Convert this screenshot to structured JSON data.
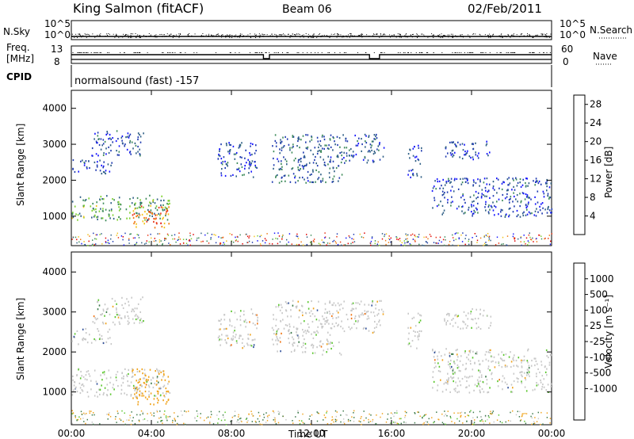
{
  "header": {
    "station": "King Salmon (fitACF)",
    "beam": "Beam 06",
    "date": "02/Feb/2011"
  },
  "left_labels": {
    "nsky": "N.Sky",
    "freq_line1": "Freq.",
    "freq_line2": "[MHz]",
    "cpid": "CPID",
    "nsky_ticks": [
      "10^5",
      "10^0"
    ],
    "freq_ticks": [
      "13",
      "8"
    ]
  },
  "right_labels": {
    "nsearch": "N.Search",
    "nave": "Nave",
    "nsearch_ticks": [
      "10^5",
      "10^0"
    ],
    "nave_ticks": [
      "60",
      "0"
    ]
  },
  "cpid_text": "normalsound (fast) -157",
  "colors": {
    "power_scale": [
      "#1414ff",
      "#1f3ab0",
      "#2f5f86",
      "#3e8a5a",
      "#7dd12e",
      "#f3c31a",
      "#f07a14",
      "#e83414",
      "#e00000"
    ],
    "velocity_scale": [
      "#1b2fe0",
      "#2f4f9a",
      "#3d7a4a",
      "#59c62b",
      "#c8c8c8",
      "#c8c8c8",
      "#f0a41e",
      "#f07414",
      "#e83a12",
      "#e00000"
    ]
  },
  "chart_data": [
    {
      "type": "heatmap",
      "name": "power",
      "xlabel": "Time UT",
      "ylabel": "Slant Range [km]",
      "x_ticks": [
        "00:00",
        "04:00",
        "08:00",
        "12:00",
        "16:00",
        "20:00",
        "00:00"
      ],
      "x_range_hours": [
        0,
        24
      ],
      "y_ticks": [
        "1000",
        "2000",
        "3000",
        "4000"
      ],
      "y_range_km": [
        180,
        4500
      ],
      "colorbar_label": "Power [dB]",
      "colorbar_ticks": [
        "4",
        "8",
        "12",
        "16",
        "20",
        "24",
        "28"
      ],
      "colorbar_range": [
        0,
        30
      ],
      "scatter_regions": [
        {
          "t0": 0.0,
          "t1": 4.9,
          "r0": 900,
          "r1": 1600,
          "value": 12
        },
        {
          "t0": 0.0,
          "t1": 2.0,
          "r0": 2200,
          "r1": 2600,
          "value": 6
        },
        {
          "t0": 1.0,
          "t1": 3.6,
          "r0": 2700,
          "r1": 3400,
          "value": 6
        },
        {
          "t0": 3.0,
          "t1": 4.9,
          "r0": 700,
          "r1": 1300,
          "value": 22
        },
        {
          "t0": 7.3,
          "t1": 9.3,
          "r0": 2100,
          "r1": 3100,
          "value": 6
        },
        {
          "t0": 10.0,
          "t1": 13.5,
          "r0": 1950,
          "r1": 3300,
          "value": 8
        },
        {
          "t0": 13.5,
          "t1": 15.6,
          "r0": 2500,
          "r1": 3300,
          "value": 7
        },
        {
          "t0": 16.8,
          "t1": 17.5,
          "r0": 2100,
          "r1": 3000,
          "value": 5
        },
        {
          "t0": 18.0,
          "t1": 24.0,
          "r0": 1000,
          "r1": 2100,
          "value": 6
        },
        {
          "t0": 18.6,
          "t1": 21.0,
          "r0": 2600,
          "r1": 3100,
          "value": 5
        }
      ]
    },
    {
      "type": "heatmap",
      "name": "velocity",
      "xlabel": "Time UT",
      "ylabel": "Slant Range [km]",
      "x_ticks": [
        "00:00",
        "04:00",
        "08:00",
        "12:00",
        "16:00",
        "20:00",
        "00:00"
      ],
      "x_range_hours": [
        0,
        24
      ],
      "y_ticks": [
        "1000",
        "2000",
        "3000",
        "4000"
      ],
      "y_range_km": [
        180,
        4500
      ],
      "colorbar_label": "Velocity [m s⁻¹]",
      "colorbar_ticks": [
        "1000",
        "500",
        "100",
        "25",
        "-25",
        "-100",
        "-500",
        "-1000"
      ],
      "scatter_regions": [
        {
          "t0": 0.0,
          "t1": 4.9,
          "r0": 900,
          "r1": 1600,
          "value": 0
        },
        {
          "t0": 0.0,
          "t1": 2.0,
          "r0": 2200,
          "r1": 2600,
          "value": 0
        },
        {
          "t0": 1.0,
          "t1": 3.6,
          "r0": 2700,
          "r1": 3400,
          "value": 0
        },
        {
          "t0": 3.0,
          "t1": 4.9,
          "r0": 700,
          "r1": 1600,
          "value": -150
        },
        {
          "t0": 7.3,
          "t1": 9.3,
          "r0": 2100,
          "r1": 3100,
          "value": 0
        },
        {
          "t0": 10.0,
          "t1": 13.5,
          "r0": 1950,
          "r1": 3300,
          "value": 0
        },
        {
          "t0": 13.5,
          "t1": 15.6,
          "r0": 2500,
          "r1": 3300,
          "value": 0
        },
        {
          "t0": 16.8,
          "t1": 17.5,
          "r0": 2100,
          "r1": 3000,
          "value": 0
        },
        {
          "t0": 18.0,
          "t1": 24.0,
          "r0": 1000,
          "r1": 2100,
          "value": 0
        },
        {
          "t0": 18.6,
          "t1": 21.0,
          "r0": 2600,
          "r1": 3100,
          "value": 0
        }
      ]
    }
  ]
}
